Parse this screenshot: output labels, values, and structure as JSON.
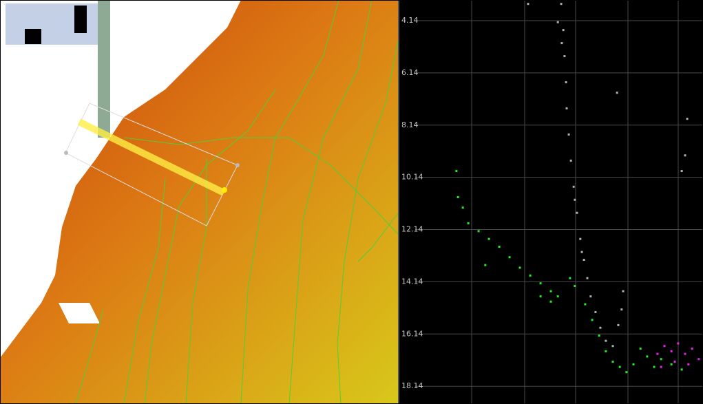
{
  "chart_data": {
    "type": "scatter",
    "xlim": [
      0,
      100
    ],
    "ylim": [
      3.35,
      18.82
    ],
    "y_inverted": true,
    "yticks": [
      4.14,
      6.14,
      8.14,
      10.14,
      12.14,
      14.14,
      16.14,
      18.14
    ],
    "grid": true,
    "series": [
      {
        "color": "#b0b0b0",
        "x": [
          53.3,
          54.0,
          54.4,
          54.9,
          55.1,
          55.8,
          56.5,
          57.4,
          58.5,
          59.6,
          60.8,
          61.9,
          63.0,
          64.6,
          66.2,
          68.0,
          70.3,
          72.1,
          73.2,
          73.7,
          71.7,
          94.8,
          94.1,
          93.0,
          42.4,
          52.2,
          53.5,
          57.8,
          60.1
        ],
        "values": [
          3.5,
          4.5,
          5.5,
          6.5,
          7.5,
          8.5,
          9.5,
          10.5,
          11.5,
          12.5,
          13.3,
          14.0,
          14.7,
          15.3,
          15.9,
          16.4,
          16.6,
          15.8,
          15.2,
          14.5,
          6.9,
          7.9,
          9.3,
          9.9,
          3.5,
          4.2,
          5.0,
          11.0,
          13.0
        ]
      },
      {
        "color": "#22ee22",
        "x": [
          18.8,
          19.3,
          20.9,
          22.7,
          26.1,
          29.5,
          32.9,
          36.3,
          39.7,
          43.1,
          46.5,
          49.9,
          52.2,
          56.2,
          57.8,
          61.2,
          63.5,
          65.8,
          68.0,
          70.3,
          72.6,
          74.8,
          77.1,
          79.4,
          81.6,
          83.9,
          86.2,
          89.6,
          93.0,
          28.3,
          46.5,
          49.9
        ],
        "values": [
          9.9,
          10.9,
          11.3,
          11.9,
          12.2,
          12.5,
          12.8,
          13.2,
          13.6,
          13.9,
          14.2,
          14.5,
          14.7,
          14.0,
          14.3,
          15.0,
          15.6,
          16.2,
          16.8,
          17.2,
          17.4,
          17.6,
          17.3,
          16.7,
          17.0,
          17.4,
          17.1,
          17.3,
          17.5,
          13.5,
          14.7,
          14.9
        ]
      },
      {
        "color": "#ee22ee",
        "x": [
          85.0,
          87.3,
          89.6,
          91.8,
          94.1,
          96.4,
          98.6,
          86.2,
          90.7,
          95.2
        ],
        "values": [
          16.9,
          16.6,
          16.8,
          16.5,
          16.9,
          16.7,
          17.1,
          17.4,
          17.2,
          17.3
        ]
      }
    ]
  }
}
